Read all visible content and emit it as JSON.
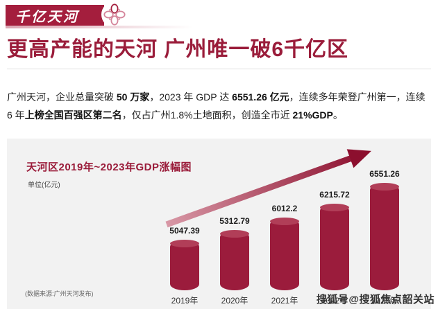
{
  "badge": {
    "label": "千亿天河"
  },
  "header": {
    "title": "更高产能的天河 广州唯一破6千亿区"
  },
  "intro": {
    "segments": [
      {
        "text": "广州天河，企业总量突破 ",
        "bold": false
      },
      {
        "text": "50 万家",
        "bold": true
      },
      {
        "text": "，2023 年 GDP 达 ",
        "bold": false
      },
      {
        "text": "6551.26 亿元",
        "bold": true
      },
      {
        "text": "，连续多年荣登广州第一，连续 6 年",
        "bold": false
      },
      {
        "text": "上榜全国百强区第二名",
        "bold": true
      },
      {
        "text": "，仅占广州1.8%土地面积，创造全市近 ",
        "bold": false
      },
      {
        "text": "21%GDP",
        "bold": true
      },
      {
        "text": "。",
        "bold": false
      }
    ]
  },
  "chart": {
    "title": "天河区2019年~2023年GDP涨幅图",
    "unit": "单位(亿元)",
    "source": "(数据来源:广州天河发布)"
  },
  "chart_data": {
    "type": "bar",
    "categories": [
      "2019年",
      "2020年",
      "2021年",
      "2022年",
      "2023年"
    ],
    "values": [
      5047.39,
      5312.79,
      6012.2,
      6215.72,
      6551.26
    ],
    "title": "天河区2019年~2023年GDP涨幅图",
    "xlabel": "",
    "ylabel": "单位(亿元)",
    "ylim": [
      0,
      7000
    ],
    "grid": false,
    "legend": "none",
    "value_labels": true,
    "bar_color": "#9b1c3c",
    "trend_arrow": true,
    "arrow_colors": [
      "#d898a6",
      "#8c0f2e"
    ]
  },
  "watermark": {
    "text": "搜狐号@搜狐焦点韶关站"
  },
  "colors": {
    "accent": "#9a1c3a",
    "badge": "#a41e3d",
    "panel": "#f2f2f2"
  }
}
